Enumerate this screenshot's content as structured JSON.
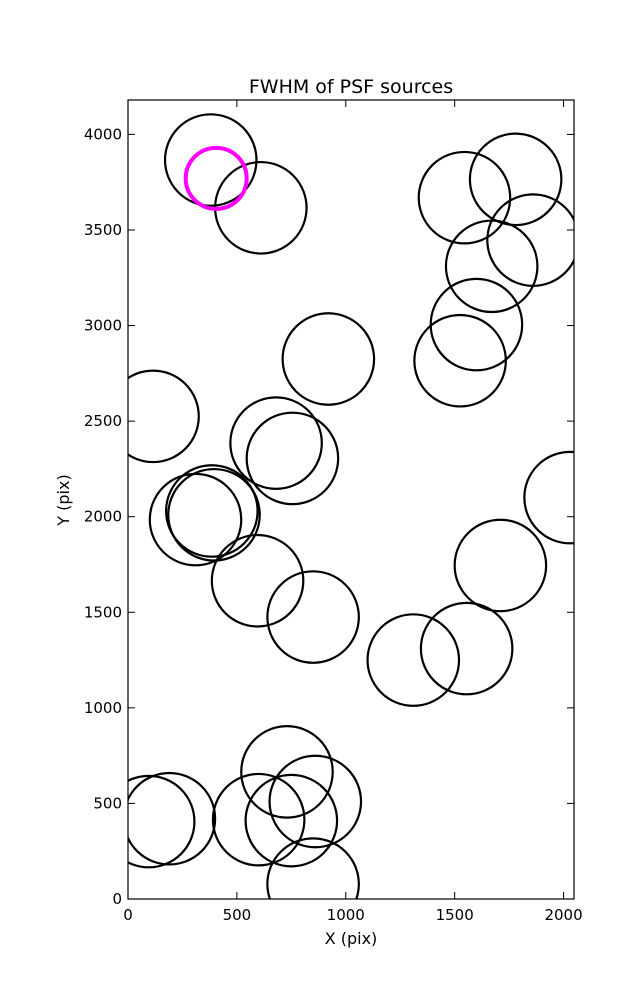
{
  "chart_data": {
    "type": "scatter",
    "title": "FWHM of PSF sources",
    "xlabel": "X (pix)",
    "ylabel": "Y (pix)",
    "xlim": [
      0,
      2048
    ],
    "ylim": [
      0,
      4180
    ],
    "xticks": [
      0,
      500,
      1000,
      1500,
      2000
    ],
    "yticks": [
      0,
      500,
      1000,
      1500,
      2000,
      2500,
      3000,
      3500,
      4000
    ],
    "grid": false,
    "marker_radius": 210,
    "highlight_radius": 140,
    "colors": {
      "circle": "#000000",
      "highlight": "#ff00ff"
    },
    "series": [
      {
        "points": [
          {
            "x": 380,
            "y": 3866
          },
          {
            "x": 610,
            "y": 3616
          },
          {
            "x": 1545,
            "y": 3669
          },
          {
            "x": 1780,
            "y": 3765
          },
          {
            "x": 1860,
            "y": 3447
          },
          {
            "x": 1670,
            "y": 3310
          },
          {
            "x": 1600,
            "y": 3005
          },
          {
            "x": 1525,
            "y": 2816
          },
          {
            "x": 920,
            "y": 2825
          },
          {
            "x": 115,
            "y": 2525
          },
          {
            "x": 680,
            "y": 2385
          },
          {
            "x": 755,
            "y": 2305
          },
          {
            "x": 385,
            "y": 2030
          },
          {
            "x": 395,
            "y": 2010
          },
          {
            "x": 310,
            "y": 1985
          },
          {
            "x": 2030,
            "y": 2100
          },
          {
            "x": 1710,
            "y": 1745
          },
          {
            "x": 595,
            "y": 1665
          },
          {
            "x": 850,
            "y": 1475
          },
          {
            "x": 1310,
            "y": 1250
          },
          {
            "x": 1555,
            "y": 1310
          },
          {
            "x": 730,
            "y": 665
          },
          {
            "x": 860,
            "y": 510
          },
          {
            "x": 600,
            "y": 415
          },
          {
            "x": 750,
            "y": 410
          },
          {
            "x": 95,
            "y": 405
          },
          {
            "x": 190,
            "y": 420
          },
          {
            "x": 850,
            "y": 78
          }
        ]
      },
      {
        "highlight": true,
        "points": [
          {
            "x": 405,
            "y": 3770
          }
        ]
      }
    ]
  }
}
